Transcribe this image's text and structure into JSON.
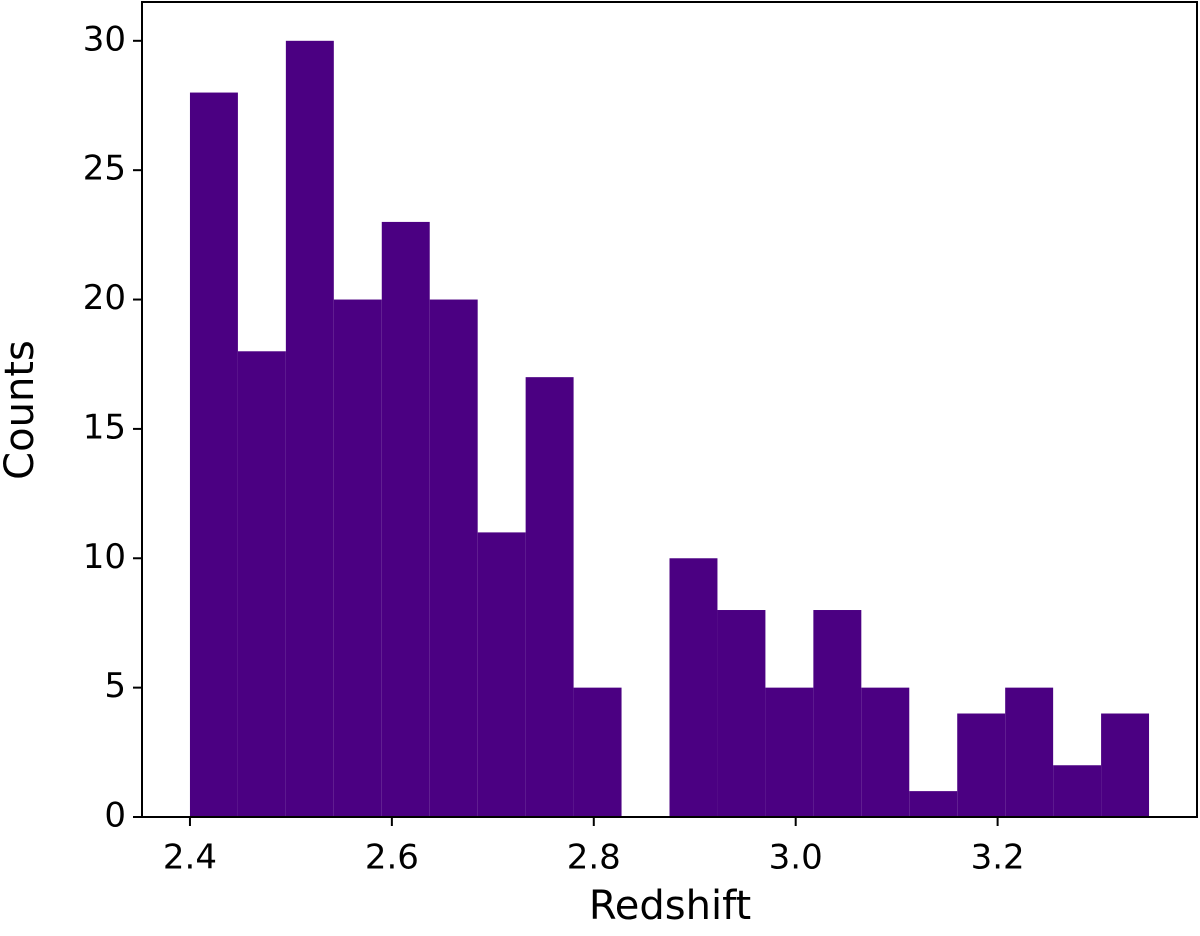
{
  "chart_data": {
    "type": "histogram",
    "x_label": "Redshift",
    "y_label": "Counts",
    "bins": [
      2.4,
      2.4475,
      2.495,
      2.5425,
      2.59,
      2.6375,
      2.685,
      2.7325,
      2.78,
      2.8275,
      2.875,
      2.9225,
      2.97,
      3.0175,
      3.065,
      3.1125,
      3.16,
      3.2075,
      3.255,
      3.3025,
      3.35
    ],
    "values": [
      28,
      18,
      30,
      20,
      23,
      20,
      11,
      17,
      5,
      0,
      10,
      8,
      5,
      8,
      5,
      1,
      4,
      5,
      2,
      4
    ],
    "color": "#4b0082",
    "xlim": [
      2.3525,
      3.3975
    ],
    "xticks": [
      2.4,
      2.6,
      2.8,
      {
        "value": 3.0,
        "label": "3.0"
      },
      3.2
    ],
    "ylim": [
      0,
      31.5
    ],
    "yticks": [
      0,
      5,
      10,
      15,
      20,
      25,
      30
    ]
  }
}
